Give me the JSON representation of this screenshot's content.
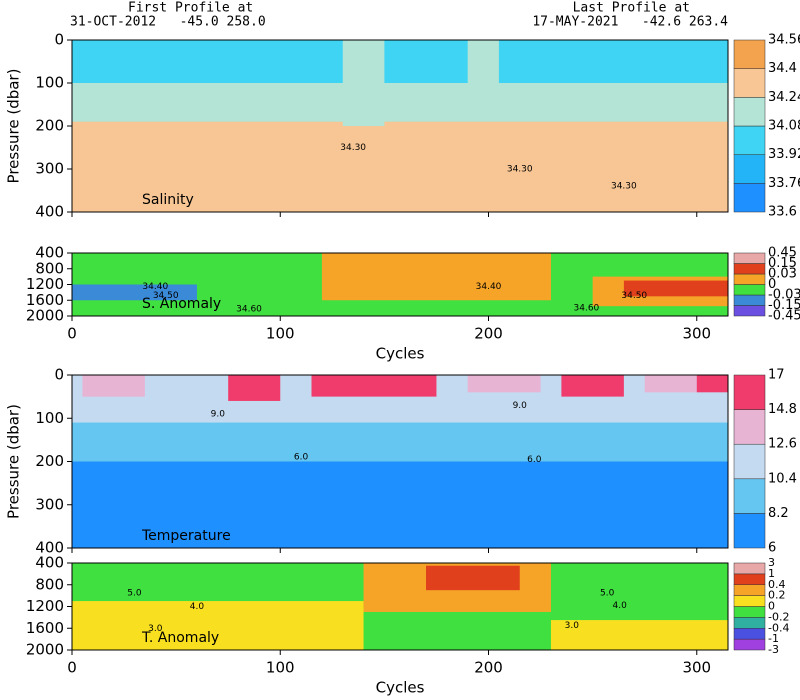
{
  "header": {
    "first_title": "First Profile at",
    "first_info": "31-OCT-2012   -45.0 258.0",
    "last_title": "Last Profile at",
    "last_info": "17-MAY-2021   -42.6 263.4"
  },
  "chart_data": [
    {
      "type": "contour",
      "title": "Salinity",
      "ylabel": "Pressure (dbar)",
      "xlim": [
        0,
        315
      ],
      "xticks": [
        0,
        100,
        200,
        300
      ],
      "ylim": [
        400,
        0
      ],
      "yticks": [
        0,
        100,
        200,
        300,
        400
      ],
      "levels": [
        33.6,
        33.76,
        33.92,
        34.08,
        34.24,
        34.4,
        34.56
      ],
      "colors": [
        "#1e90ff",
        "#22b4f6",
        "#3fd4f4",
        "#b4e4d6",
        "#f8c694",
        "#f3a24e"
      ],
      "layers": [
        {
          "x": [
            0,
            315
          ],
          "y": [
            0,
            400
          ],
          "band": 4
        },
        {
          "x": [
            0,
            315
          ],
          "y": [
            0,
            190
          ],
          "band": 3
        },
        {
          "x": [
            0,
            315
          ],
          "y": [
            0,
            100
          ],
          "band": 2
        },
        {
          "x": [
            130,
            150
          ],
          "y": [
            0,
            200
          ],
          "band": 3
        },
        {
          "x": [
            190,
            205
          ],
          "y": [
            0,
            150
          ],
          "band": 3
        }
      ],
      "contour_labels": [
        {
          "text": "34.30",
          "x": 135,
          "y": 250
        },
        {
          "text": "34.30",
          "x": 215,
          "y": 300
        },
        {
          "text": "34.30",
          "x": 265,
          "y": 340
        }
      ]
    },
    {
      "type": "contour",
      "title": "S. Anomaly",
      "xlabel": "Cycles",
      "xlim": [
        0,
        315
      ],
      "xticks": [
        0,
        100,
        200,
        300
      ],
      "ylim": [
        2000,
        400
      ],
      "yticks": [
        400,
        800,
        1200,
        1600,
        2000
      ],
      "levels": [
        -0.45,
        -0.15,
        -0.03,
        0,
        0.03,
        0.15,
        0.45
      ],
      "colors": [
        "#6a4fe0",
        "#3a8ad8",
        "#40e040",
        "#f6a428",
        "#e0401c",
        "#e8a8a8"
      ],
      "layers": [
        {
          "x": [
            0,
            315
          ],
          "y": [
            400,
            2000
          ],
          "band": 2
        },
        {
          "x": [
            120,
            230
          ],
          "y": [
            400,
            1600
          ],
          "band": 3
        },
        {
          "x": [
            250,
            315
          ],
          "y": [
            1000,
            1750
          ],
          "band": 3
        },
        {
          "x": [
            265,
            315
          ],
          "y": [
            1100,
            1500
          ],
          "band": 4
        },
        {
          "x": [
            0,
            60
          ],
          "y": [
            1200,
            1600
          ],
          "band": 1
        }
      ],
      "contour_labels": [
        {
          "text": "34.40",
          "x": 40,
          "y": 1250
        },
        {
          "text": "34.50",
          "x": 45,
          "y": 1480
        },
        {
          "text": "34.60",
          "x": 85,
          "y": 1820
        },
        {
          "text": "34.40",
          "x": 200,
          "y": 1250
        },
        {
          "text": "34.50",
          "x": 270,
          "y": 1480
        },
        {
          "text": "34.60",
          "x": 247,
          "y": 1800
        }
      ]
    },
    {
      "type": "contour",
      "title": "Temperature",
      "ylabel": "Pressure (dbar)",
      "xlim": [
        0,
        315
      ],
      "xticks": [
        0,
        100,
        200,
        300
      ],
      "ylim": [
        400,
        0
      ],
      "yticks": [
        0,
        100,
        200,
        300,
        400
      ],
      "levels": [
        6,
        8.2,
        10.4,
        12.6,
        14.8,
        17
      ],
      "colors": [
        "#1e90ff",
        "#66c6f2",
        "#c4daf0",
        "#e8b4d4",
        "#f03c6c"
      ],
      "layers": [
        {
          "x": [
            0,
            315
          ],
          "y": [
            0,
            400
          ],
          "band": 0
        },
        {
          "x": [
            0,
            315
          ],
          "y": [
            0,
            200
          ],
          "band": 1
        },
        {
          "x": [
            0,
            315
          ],
          "y": [
            0,
            110
          ],
          "band": 2
        },
        {
          "x": [
            5,
            35
          ],
          "y": [
            0,
            50
          ],
          "band": 3
        },
        {
          "x": [
            75,
            100
          ],
          "y": [
            0,
            60
          ],
          "band": 4
        },
        {
          "x": [
            115,
            175
          ],
          "y": [
            0,
            50
          ],
          "band": 4
        },
        {
          "x": [
            190,
            225
          ],
          "y": [
            0,
            40
          ],
          "band": 3
        },
        {
          "x": [
            235,
            265
          ],
          "y": [
            0,
            50
          ],
          "band": 4
        },
        {
          "x": [
            275,
            300
          ],
          "y": [
            0,
            40
          ],
          "band": 3
        },
        {
          "x": [
            300,
            315
          ],
          "y": [
            0,
            40
          ],
          "band": 4
        }
      ],
      "contour_labels": [
        {
          "text": "9.0",
          "x": 70,
          "y": 90
        },
        {
          "text": "6.0",
          "x": 110,
          "y": 190
        },
        {
          "text": "9.0",
          "x": 215,
          "y": 70
        },
        {
          "text": "6.0",
          "x": 222,
          "y": 195
        }
      ]
    },
    {
      "type": "contour",
      "title": "T. Anomaly",
      "xlabel": "Cycles",
      "xlim": [
        0,
        315
      ],
      "xticks": [
        0,
        100,
        200,
        300
      ],
      "ylim": [
        2000,
        400
      ],
      "yticks": [
        400,
        800,
        1200,
        1600,
        2000
      ],
      "levels": [
        -3,
        -1,
        -0.4,
        -0.2,
        0,
        0.2,
        0.4,
        1,
        3
      ],
      "colors": [
        "#a040e0",
        "#4a50e0",
        "#30b0a0",
        "#40e040",
        "#f8e020",
        "#f6a428",
        "#e0401c",
        "#e8a8a8"
      ],
      "layers": [
        {
          "x": [
            0,
            315
          ],
          "y": [
            400,
            2000
          ],
          "band": 3
        },
        {
          "x": [
            0,
            140
          ],
          "y": [
            1100,
            2000
          ],
          "band": 4
        },
        {
          "x": [
            140,
            230
          ],
          "y": [
            400,
            1300
          ],
          "band": 5
        },
        {
          "x": [
            170,
            215
          ],
          "y": [
            450,
            900
          ],
          "band": 6
        },
        {
          "x": [
            230,
            315
          ],
          "y": [
            1450,
            2000
          ],
          "band": 4
        }
      ],
      "contour_labels": [
        {
          "text": "5.0",
          "x": 30,
          "y": 950
        },
        {
          "text": "4.0",
          "x": 60,
          "y": 1200
        },
        {
          "text": "3.0",
          "x": 40,
          "y": 1600
        },
        {
          "text": "5.0",
          "x": 257,
          "y": 950
        },
        {
          "text": "4.0",
          "x": 263,
          "y": 1180
        },
        {
          "text": "3.0",
          "x": 240,
          "y": 1550
        }
      ]
    }
  ]
}
